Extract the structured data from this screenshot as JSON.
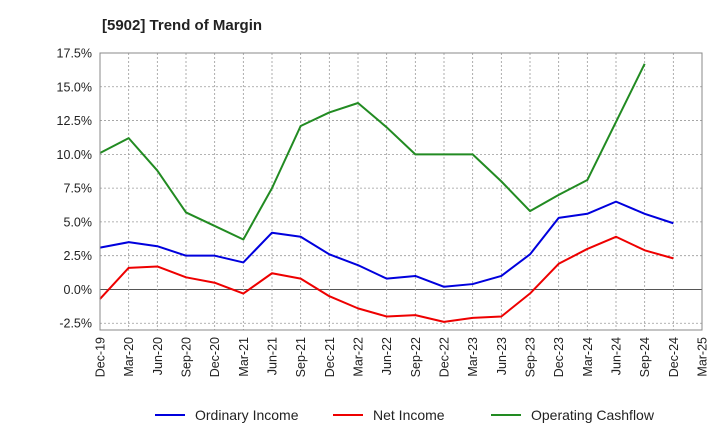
{
  "chart_data": {
    "type": "line",
    "title": "[5902]  Trend of Margin",
    "x": [
      "Dec-19",
      "Mar-20",
      "Jun-20",
      "Sep-20",
      "Dec-20",
      "Mar-21",
      "Jun-21",
      "Sep-21",
      "Dec-21",
      "Mar-22",
      "Jun-22",
      "Sep-22",
      "Dec-22",
      "Mar-23",
      "Jun-23",
      "Sep-23",
      "Dec-23",
      "Mar-24",
      "Jun-24",
      "Sep-24",
      "Dec-24",
      "Mar-25"
    ],
    "yticks": [
      "-2.5%",
      "0.0%",
      "2.5%",
      "5.0%",
      "7.5%",
      "10.0%",
      "12.5%",
      "15.0%",
      "17.5%"
    ],
    "ylim": [
      -3.0,
      17.5
    ],
    "grid": true,
    "legend_position": "bottom",
    "series": [
      {
        "name": "Ordinary Income",
        "color": "#0000dd",
        "values": [
          3.1,
          3.5,
          3.2,
          2.5,
          2.5,
          2.0,
          4.2,
          3.9,
          2.6,
          1.8,
          0.8,
          1.0,
          0.2,
          0.4,
          1.0,
          2.6,
          5.3,
          5.6,
          6.5,
          5.6,
          4.9,
          null
        ]
      },
      {
        "name": "Net Income",
        "color": "#ee0000",
        "values": [
          -0.7,
          1.6,
          1.7,
          0.9,
          0.5,
          -0.3,
          1.2,
          0.8,
          -0.5,
          -1.4,
          -2.0,
          -1.9,
          -2.4,
          -2.1,
          -2.0,
          -0.3,
          1.9,
          3.0,
          3.9,
          2.9,
          2.3,
          null
        ]
      },
      {
        "name": "Operating Cashflow",
        "color": "#228b22",
        "values": [
          10.1,
          11.2,
          8.8,
          5.7,
          4.7,
          3.7,
          7.5,
          12.1,
          13.1,
          13.8,
          12.0,
          10.0,
          10.0,
          10.0,
          8.0,
          5.8,
          7.0,
          8.1,
          12.4,
          16.7,
          null,
          null
        ]
      }
    ]
  }
}
